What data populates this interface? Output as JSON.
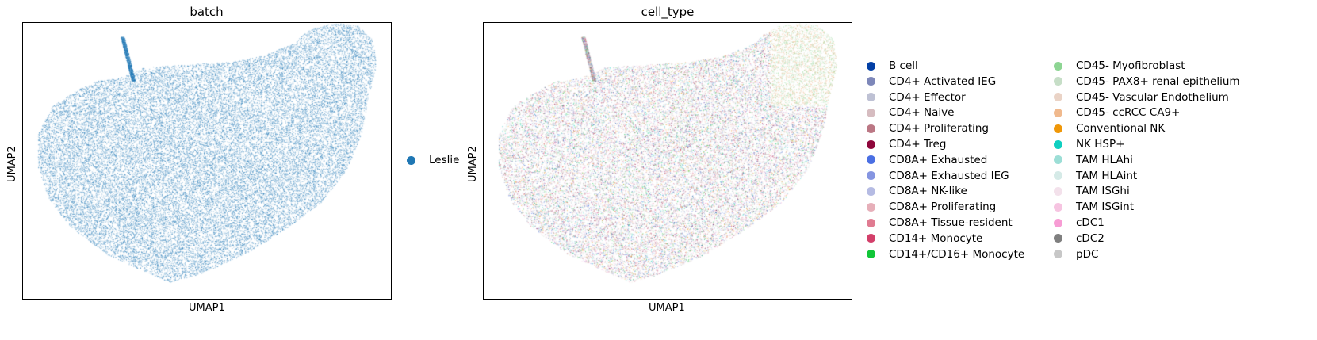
{
  "chart_data": [
    {
      "type": "scatter",
      "title": "batch",
      "xlabel": "UMAP1",
      "ylabel": "UMAP2",
      "grid": false,
      "xticks": [],
      "yticks": [],
      "legend_position": "right",
      "legend": [
        {
          "label": "Leslie",
          "color": "#1f77b4"
        }
      ]
    },
    {
      "type": "scatter",
      "title": "cell_type",
      "xlabel": "UMAP1",
      "ylabel": "UMAP2",
      "grid": false,
      "xticks": [],
      "yticks": [],
      "legend_position": "right",
      "legend": [
        {
          "label": "B cell",
          "color": "#023fa5"
        },
        {
          "label": "CD4+ Activated IEG",
          "color": "#7d87b9"
        },
        {
          "label": "CD4+ Effector",
          "color": "#bec1d4"
        },
        {
          "label": "CD4+ Naive",
          "color": "#d6bcc0"
        },
        {
          "label": "CD4+ Proliferating",
          "color": "#bb7784"
        },
        {
          "label": "CD4+ Treg",
          "color": "#8e063b"
        },
        {
          "label": "CD8A+ Exhausted",
          "color": "#4a6fe3"
        },
        {
          "label": "CD8A+ Exhausted IEG",
          "color": "#8595e1"
        },
        {
          "label": "CD8A+ NK-like",
          "color": "#b5bbe3"
        },
        {
          "label": "CD8A+ Proliferating",
          "color": "#e6afb9"
        },
        {
          "label": "CD8A+ Tissue-resident",
          "color": "#e07b91"
        },
        {
          "label": "CD14+ Monocyte",
          "color": "#d33f6a"
        },
        {
          "label": "CD14+/CD16+ Monocyte",
          "color": "#11c638"
        },
        {
          "label": "CD45- Myofibroblast",
          "color": "#8dd593"
        },
        {
          "label": "CD45- PAX8+ renal epithelium",
          "color": "#c6dec7"
        },
        {
          "label": "CD45- Vascular Endothelium",
          "color": "#ead3c6"
        },
        {
          "label": "CD45- ccRCC CA9+",
          "color": "#f0b98d"
        },
        {
          "label": "Conventional NK",
          "color": "#ef9708"
        },
        {
          "label": "NK HSP+",
          "color": "#0fcfc0"
        },
        {
          "label": "TAM HLAhi",
          "color": "#9cded6"
        },
        {
          "label": "TAM HLAint",
          "color": "#d5eae7"
        },
        {
          "label": "TAM ISGhi",
          "color": "#f3e1eb"
        },
        {
          "label": "TAM ISGint",
          "color": "#f6c4e1"
        },
        {
          "label": "cDC1",
          "color": "#f79cd4"
        },
        {
          "label": "cDC2",
          "color": "#7f7f7f"
        },
        {
          "label": "pDC",
          "color": "#c7c7c7"
        }
      ]
    }
  ]
}
